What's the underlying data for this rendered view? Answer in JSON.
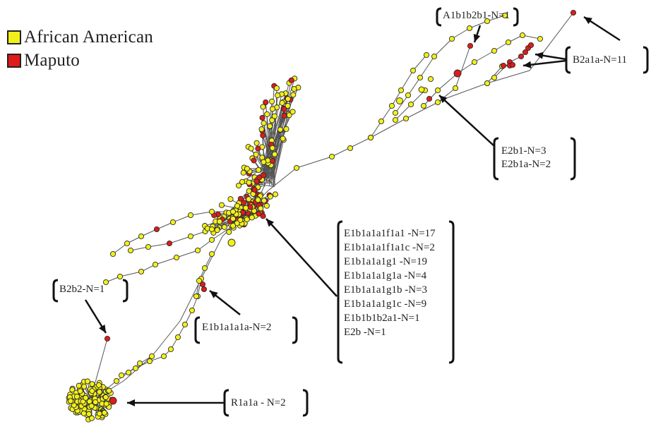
{
  "colors": {
    "african_american": "#f2f01a",
    "maputo": "#e01b1b",
    "edge": "#555555",
    "node_stroke": "#2a2a2a"
  },
  "legend": {
    "items": [
      {
        "label": "African American",
        "color": "#f2f01a"
      },
      {
        "label": "Maputo",
        "color": "#e01b1b"
      }
    ]
  },
  "callouts": {
    "a1b1b2b1": {
      "lines": [
        "A1b1b2b1-N=1"
      ]
    },
    "b2a1a": {
      "lines": [
        "B2a1a-N=11"
      ]
    },
    "e2b1": {
      "lines": [
        "E2b1-N=3",
        "E2b1a-N=2"
      ]
    },
    "e1b_group": {
      "lines": [
        "E1b1a1a1f1a1 -N=17",
        "E1b1a1a1f1a1c -N=2",
        "E1b1a1a1g1 -N=19",
        "E1b1a1a1g1a -N=4",
        "E1b1a1a1g1b -N=3",
        "E1b1a1a1g1c -N=9",
        "E1b1b1b2a1-N=1",
        "E2b -N=1"
      ]
    },
    "b2b2": {
      "lines": [
        "B2b2-N=1"
      ]
    },
    "e1b1a1a1a": {
      "lines": [
        "E1b1a1a1a-N=2"
      ]
    },
    "r1a1a": {
      "lines": [
        "R1a1a - N=2"
      ]
    }
  }
}
